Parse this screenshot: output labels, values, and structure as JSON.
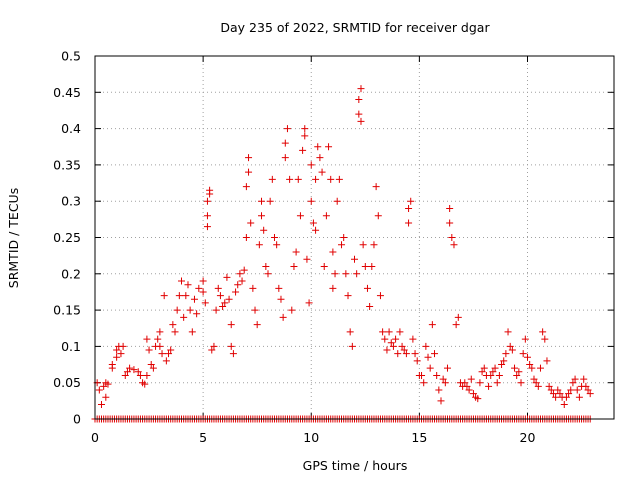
{
  "chart_data": {
    "type": "scatter",
    "title": "Day 235 of 2022, SRMTID for receiver dgar",
    "xlabel": "GPS time / hours",
    "ylabel": "SRMTID / TECUs",
    "xlim": [
      0,
      24
    ],
    "ylim": [
      0,
      0.5
    ],
    "xticks": [
      0,
      5,
      10,
      15,
      20
    ],
    "xtick_labels": [
      "0",
      "5",
      "10",
      "15",
      "20"
    ],
    "yticks": [
      0,
      0.05,
      0.1,
      0.15,
      0.2,
      0.25,
      0.3,
      0.35,
      0.4,
      0.45,
      0.5
    ],
    "ytick_labels": [
      "0",
      "0.05",
      "0.1",
      "0.15",
      "0.2",
      "0.25",
      "0.3",
      "0.35",
      "0.4",
      "0.45",
      "0.5"
    ],
    "grid": true,
    "marker": "+",
    "color": "#e00000",
    "series": [
      {
        "name": "SRMTID",
        "zero_line": {
          "x_start": 0,
          "x_end": 22.9,
          "step": 0.1,
          "y": 0
        },
        "points": [
          [
            0.1,
            0.05
          ],
          [
            0.2,
            0.04
          ],
          [
            0.3,
            0.02
          ],
          [
            0.4,
            0.045
          ],
          [
            0.5,
            0.03
          ],
          [
            0.5,
            0.05
          ],
          [
            0.6,
            0.048
          ],
          [
            0.8,
            0.07
          ],
          [
            0.8,
            0.075
          ],
          [
            1.0,
            0.085
          ],
          [
            1.0,
            0.095
          ],
          [
            1.1,
            0.1
          ],
          [
            1.2,
            0.09
          ],
          [
            1.3,
            0.1
          ],
          [
            1.4,
            0.06
          ],
          [
            1.5,
            0.065
          ],
          [
            1.6,
            0.07
          ],
          [
            1.8,
            0.068
          ],
          [
            2.0,
            0.065
          ],
          [
            2.1,
            0.06
          ],
          [
            2.2,
            0.05
          ],
          [
            2.3,
            0.048
          ],
          [
            2.4,
            0.06
          ],
          [
            2.4,
            0.11
          ],
          [
            2.5,
            0.095
          ],
          [
            2.6,
            0.075
          ],
          [
            2.7,
            0.07
          ],
          [
            2.8,
            0.1
          ],
          [
            2.9,
            0.11
          ],
          [
            3.0,
            0.12
          ],
          [
            3.0,
            0.1
          ],
          [
            3.1,
            0.09
          ],
          [
            3.2,
            0.17
          ],
          [
            3.3,
            0.08
          ],
          [
            3.4,
            0.09
          ],
          [
            3.5,
            0.095
          ],
          [
            3.6,
            0.13
          ],
          [
            3.7,
            0.12
          ],
          [
            3.8,
            0.15
          ],
          [
            3.9,
            0.17
          ],
          [
            4.0,
            0.19
          ],
          [
            4.1,
            0.14
          ],
          [
            4.2,
            0.17
          ],
          [
            4.3,
            0.185
          ],
          [
            4.4,
            0.15
          ],
          [
            4.5,
            0.12
          ],
          [
            4.6,
            0.165
          ],
          [
            4.7,
            0.145
          ],
          [
            4.8,
            0.18
          ],
          [
            5.0,
            0.19
          ],
          [
            5.0,
            0.175
          ],
          [
            5.1,
            0.16
          ],
          [
            5.2,
            0.265
          ],
          [
            5.2,
            0.28
          ],
          [
            5.2,
            0.3
          ],
          [
            5.3,
            0.31
          ],
          [
            5.3,
            0.315
          ],
          [
            5.4,
            0.095
          ],
          [
            5.5,
            0.1
          ],
          [
            5.6,
            0.15
          ],
          [
            5.7,
            0.18
          ],
          [
            5.8,
            0.17
          ],
          [
            5.9,
            0.155
          ],
          [
            6.0,
            0.16
          ],
          [
            6.1,
            0.195
          ],
          [
            6.2,
            0.165
          ],
          [
            6.3,
            0.13
          ],
          [
            6.3,
            0.1
          ],
          [
            6.4,
            0.09
          ],
          [
            6.5,
            0.175
          ],
          [
            6.6,
            0.185
          ],
          [
            6.7,
            0.2
          ],
          [
            6.8,
            0.19
          ],
          [
            6.9,
            0.205
          ],
          [
            7.0,
            0.25
          ],
          [
            7.0,
            0.32
          ],
          [
            7.1,
            0.34
          ],
          [
            7.1,
            0.36
          ],
          [
            7.2,
            0.27
          ],
          [
            7.3,
            0.18
          ],
          [
            7.4,
            0.15
          ],
          [
            7.5,
            0.13
          ],
          [
            7.6,
            0.24
          ],
          [
            7.7,
            0.28
          ],
          [
            7.7,
            0.3
          ],
          [
            7.8,
            0.26
          ],
          [
            7.9,
            0.21
          ],
          [
            8.0,
            0.2
          ],
          [
            8.1,
            0.3
          ],
          [
            8.2,
            0.33
          ],
          [
            8.3,
            0.25
          ],
          [
            8.4,
            0.24
          ],
          [
            8.5,
            0.18
          ],
          [
            8.6,
            0.165
          ],
          [
            8.7,
            0.14
          ],
          [
            8.8,
            0.36
          ],
          [
            8.8,
            0.38
          ],
          [
            8.9,
            0.4
          ],
          [
            9.0,
            0.33
          ],
          [
            9.1,
            0.15
          ],
          [
            9.2,
            0.21
          ],
          [
            9.3,
            0.23
          ],
          [
            9.4,
            0.33
          ],
          [
            9.5,
            0.28
          ],
          [
            9.6,
            0.37
          ],
          [
            9.7,
            0.39
          ],
          [
            9.7,
            0.4
          ],
          [
            9.8,
            0.22
          ],
          [
            9.9,
            0.16
          ],
          [
            10.0,
            0.35
          ],
          [
            10.0,
            0.3
          ],
          [
            10.1,
            0.27
          ],
          [
            10.2,
            0.26
          ],
          [
            10.2,
            0.33
          ],
          [
            10.3,
            0.375
          ],
          [
            10.4,
            0.36
          ],
          [
            10.5,
            0.34
          ],
          [
            10.6,
            0.21
          ],
          [
            10.7,
            0.28
          ],
          [
            10.8,
            0.375
          ],
          [
            10.9,
            0.33
          ],
          [
            11.0,
            0.23
          ],
          [
            11.0,
            0.18
          ],
          [
            11.1,
            0.2
          ],
          [
            11.2,
            0.3
          ],
          [
            11.3,
            0.33
          ],
          [
            11.4,
            0.24
          ],
          [
            11.5,
            0.25
          ],
          [
            11.6,
            0.2
          ],
          [
            11.7,
            0.17
          ],
          [
            11.8,
            0.12
          ],
          [
            11.9,
            0.1
          ],
          [
            12.0,
            0.22
          ],
          [
            12.1,
            0.2
          ],
          [
            12.2,
            0.42
          ],
          [
            12.2,
            0.44
          ],
          [
            12.3,
            0.455
          ],
          [
            12.3,
            0.41
          ],
          [
            12.4,
            0.24
          ],
          [
            12.5,
            0.21
          ],
          [
            12.6,
            0.18
          ],
          [
            12.7,
            0.155
          ],
          [
            12.8,
            0.21
          ],
          [
            12.9,
            0.24
          ],
          [
            13.0,
            0.32
          ],
          [
            13.1,
            0.28
          ],
          [
            13.2,
            0.17
          ],
          [
            13.3,
            0.12
          ],
          [
            13.4,
            0.11
          ],
          [
            13.5,
            0.095
          ],
          [
            13.6,
            0.12
          ],
          [
            13.7,
            0.105
          ],
          [
            13.8,
            0.1
          ],
          [
            13.9,
            0.11
          ],
          [
            14.0,
            0.09
          ],
          [
            14.1,
            0.12
          ],
          [
            14.2,
            0.1
          ],
          [
            14.3,
            0.095
          ],
          [
            14.4,
            0.09
          ],
          [
            14.5,
            0.27
          ],
          [
            14.5,
            0.29
          ],
          [
            14.6,
            0.3
          ],
          [
            14.7,
            0.11
          ],
          [
            14.8,
            0.09
          ],
          [
            14.9,
            0.08
          ],
          [
            15.0,
            0.06
          ],
          [
            15.1,
            0.06
          ],
          [
            15.2,
            0.05
          ],
          [
            15.3,
            0.1
          ],
          [
            15.4,
            0.085
          ],
          [
            15.5,
            0.07
          ],
          [
            15.6,
            0.13
          ],
          [
            15.7,
            0.09
          ],
          [
            15.8,
            0.06
          ],
          [
            15.9,
            0.04
          ],
          [
            16.0,
            0.025
          ],
          [
            16.1,
            0.055
          ],
          [
            16.2,
            0.05
          ],
          [
            16.3,
            0.07
          ],
          [
            16.4,
            0.29
          ],
          [
            16.4,
            0.27
          ],
          [
            16.5,
            0.25
          ],
          [
            16.6,
            0.24
          ],
          [
            16.7,
            0.13
          ],
          [
            16.8,
            0.14
          ],
          [
            16.9,
            0.05
          ],
          [
            17.0,
            0.045
          ],
          [
            17.1,
            0.05
          ],
          [
            17.2,
            0.045
          ],
          [
            17.3,
            0.04
          ],
          [
            17.4,
            0.055
          ],
          [
            17.5,
            0.035
          ],
          [
            17.6,
            0.03
          ],
          [
            17.7,
            0.028
          ],
          [
            17.8,
            0.05
          ],
          [
            17.9,
            0.065
          ],
          [
            18.0,
            0.07
          ],
          [
            18.1,
            0.06
          ],
          [
            18.2,
            0.045
          ],
          [
            18.3,
            0.06
          ],
          [
            18.4,
            0.065
          ],
          [
            18.5,
            0.07
          ],
          [
            18.6,
            0.05
          ],
          [
            18.7,
            0.06
          ],
          [
            18.8,
            0.075
          ],
          [
            18.9,
            0.08
          ],
          [
            19.0,
            0.09
          ],
          [
            19.1,
            0.12
          ],
          [
            19.2,
            0.1
          ],
          [
            19.3,
            0.095
          ],
          [
            19.4,
            0.07
          ],
          [
            19.5,
            0.06
          ],
          [
            19.6,
            0.065
          ],
          [
            19.7,
            0.05
          ],
          [
            19.8,
            0.09
          ],
          [
            19.9,
            0.11
          ],
          [
            20.0,
            0.085
          ],
          [
            20.1,
            0.075
          ],
          [
            20.2,
            0.07
          ],
          [
            20.3,
            0.055
          ],
          [
            20.4,
            0.05
          ],
          [
            20.5,
            0.045
          ],
          [
            20.6,
            0.07
          ],
          [
            20.7,
            0.12
          ],
          [
            20.8,
            0.11
          ],
          [
            20.9,
            0.08
          ],
          [
            21.0,
            0.045
          ],
          [
            21.1,
            0.04
          ],
          [
            21.2,
            0.035
          ],
          [
            21.3,
            0.03
          ],
          [
            21.4,
            0.04
          ],
          [
            21.5,
            0.035
          ],
          [
            21.6,
            0.03
          ],
          [
            21.7,
            0.02
          ],
          [
            21.8,
            0.03
          ],
          [
            21.9,
            0.035
          ],
          [
            22.0,
            0.04
          ],
          [
            22.1,
            0.05
          ],
          [
            22.2,
            0.055
          ],
          [
            22.3,
            0.04
          ],
          [
            22.4,
            0.03
          ],
          [
            22.5,
            0.045
          ],
          [
            22.6,
            0.055
          ],
          [
            22.7,
            0.045
          ],
          [
            22.8,
            0.04
          ],
          [
            22.9,
            0.035
          ]
        ]
      }
    ]
  }
}
